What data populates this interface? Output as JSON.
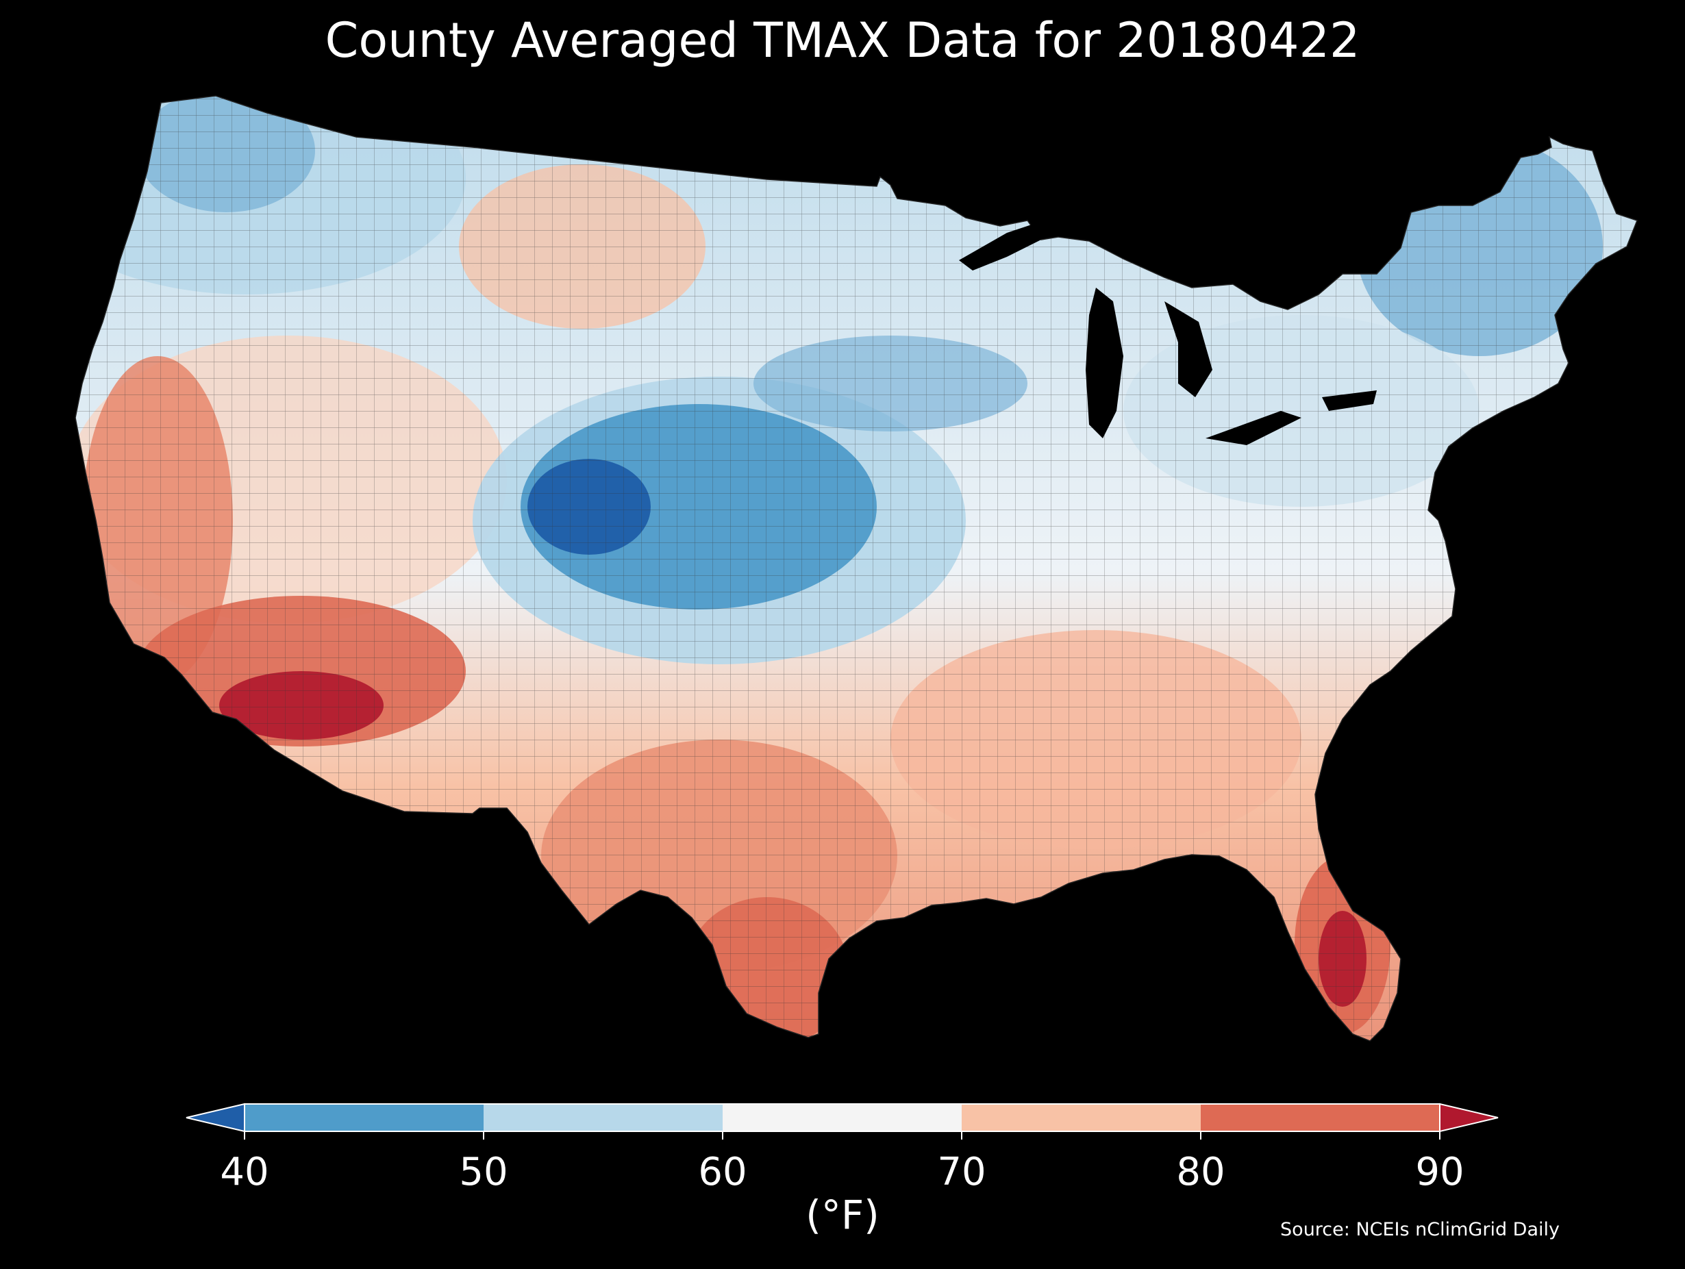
{
  "title": "County Averaged TMAX Data for 20180422",
  "colorbar": {
    "unit_label": "(°F)",
    "ticks": [
      "40",
      "50",
      "60",
      "70",
      "80",
      "90"
    ],
    "bins": [
      {
        "range": "<40",
        "color": "#1f5ea8"
      },
      {
        "range": "40-50",
        "color": "#4f9cca"
      },
      {
        "range": "50-60",
        "color": "#b7d8ea"
      },
      {
        "range": "60-70",
        "color": "#f4f4f4"
      },
      {
        "range": "70-80",
        "color": "#f8c2a6"
      },
      {
        "range": "80-90",
        "color": "#de6a54"
      },
      {
        "range": ">90",
        "color": "#b0182e"
      }
    ],
    "extend": "both"
  },
  "source": "Source: NCEIs nClimGrid Daily",
  "map": {
    "region": "Contiguous United States",
    "variable": "TMAX",
    "background": "#000000"
  }
}
